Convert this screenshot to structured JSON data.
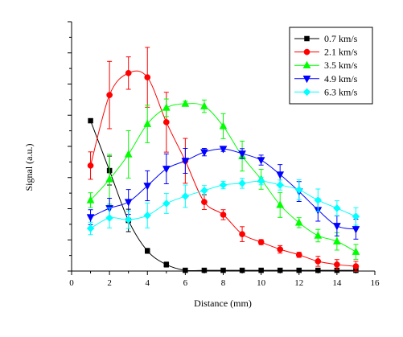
{
  "chart_data": {
    "type": "line",
    "xlabel": "Distance (mm)",
    "ylabel": "Signal (a.u.)",
    "xlim": [
      0,
      16
    ],
    "ylim": [
      0,
      1
    ],
    "x_ticks": [
      0,
      2,
      4,
      6,
      8,
      10,
      12,
      14,
      16
    ],
    "x_tick_labels": [
      "0",
      "2",
      "4",
      "6",
      "8",
      "10",
      "12",
      "14",
      "16"
    ],
    "grid": false,
    "legend_position": "top-right",
    "series": [
      {
        "name": "0.7 km/s",
        "color": "#000000",
        "marker": "square",
        "x": [
          1,
          2,
          3,
          4,
          5,
          6,
          7,
          8,
          9,
          10,
          11,
          12,
          13,
          14,
          15
        ],
        "y": [
          0.603,
          0.403,
          0.203,
          0.081,
          0.026,
          0.003,
          0.003,
          0.003,
          0.003,
          0.003,
          0.003,
          0.003,
          0.003,
          0.003,
          0.003
        ],
        "err": [
          0,
          0.058,
          0.045,
          0.01,
          0.01,
          0,
          0,
          0,
          0,
          0,
          0,
          0,
          0,
          0,
          0
        ]
      },
      {
        "name": "2.1 km/s",
        "color": "#ff0000",
        "marker": "circle",
        "x": [
          1,
          2,
          3,
          4,
          5,
          6,
          7,
          8,
          9,
          10,
          11,
          12,
          13,
          14,
          15
        ],
        "y": [
          0.423,
          0.706,
          0.794,
          0.777,
          0.597,
          0.442,
          0.277,
          0.226,
          0.148,
          0.116,
          0.087,
          0.065,
          0.039,
          0.026,
          0.019
        ],
        "err": [
          0.055,
          0.135,
          0.065,
          0.12,
          0.12,
          0.09,
          0.03,
          0.02,
          0.03,
          0.01,
          0.015,
          0.01,
          0.02,
          0.02,
          0.02
        ]
      },
      {
        "name": "3.5 km/s",
        "color": "#00ff00",
        "marker": "triangle-up",
        "x": [
          1,
          2,
          3,
          4,
          5,
          6,
          7,
          8,
          9,
          10,
          11,
          12,
          13,
          14,
          15
        ],
        "y": [
          0.284,
          0.368,
          0.468,
          0.59,
          0.655,
          0.671,
          0.661,
          0.581,
          0.461,
          0.368,
          0.265,
          0.194,
          0.142,
          0.119,
          0.077
        ],
        "err": [
          0.03,
          0.1,
          0.095,
          0.075,
          0.035,
          0.01,
          0.025,
          0.05,
          0.06,
          0.04,
          0.05,
          0.02,
          0.025,
          0.035,
          0.03
        ]
      },
      {
        "name": "4.9 km/s",
        "color": "#0000ff",
        "marker": "triangle-down",
        "x": [
          1,
          2,
          3,
          4,
          5,
          6,
          7,
          8,
          9,
          10,
          11,
          12,
          13,
          14,
          15
        ],
        "y": [
          0.216,
          0.252,
          0.277,
          0.342,
          0.41,
          0.442,
          0.477,
          0.49,
          0.471,
          0.445,
          0.387,
          0.319,
          0.245,
          0.181,
          0.168
        ],
        "err": [
          0.03,
          0.04,
          0.05,
          0.06,
          0.06,
          0.05,
          0.015,
          0.01,
          0.02,
          0.02,
          0.04,
          0.04,
          0.045,
          0.04,
          0.04
        ]
      },
      {
        "name": "6.3 km/s",
        "color": "#00ffff",
        "marker": "diamond",
        "x": [
          1,
          2,
          3,
          4,
          5,
          6,
          7,
          8,
          9,
          10,
          11,
          12,
          13,
          14,
          15
        ],
        "y": [
          0.171,
          0.213,
          0.206,
          0.223,
          0.271,
          0.3,
          0.323,
          0.345,
          0.352,
          0.361,
          0.345,
          0.326,
          0.284,
          0.252,
          0.219
        ],
        "err": [
          0.025,
          0.04,
          0.035,
          0.05,
          0.04,
          0.045,
          0.02,
          0.015,
          0.02,
          0.015,
          0.02,
          0.04,
          0.045,
          0.03,
          0.035
        ]
      }
    ]
  }
}
